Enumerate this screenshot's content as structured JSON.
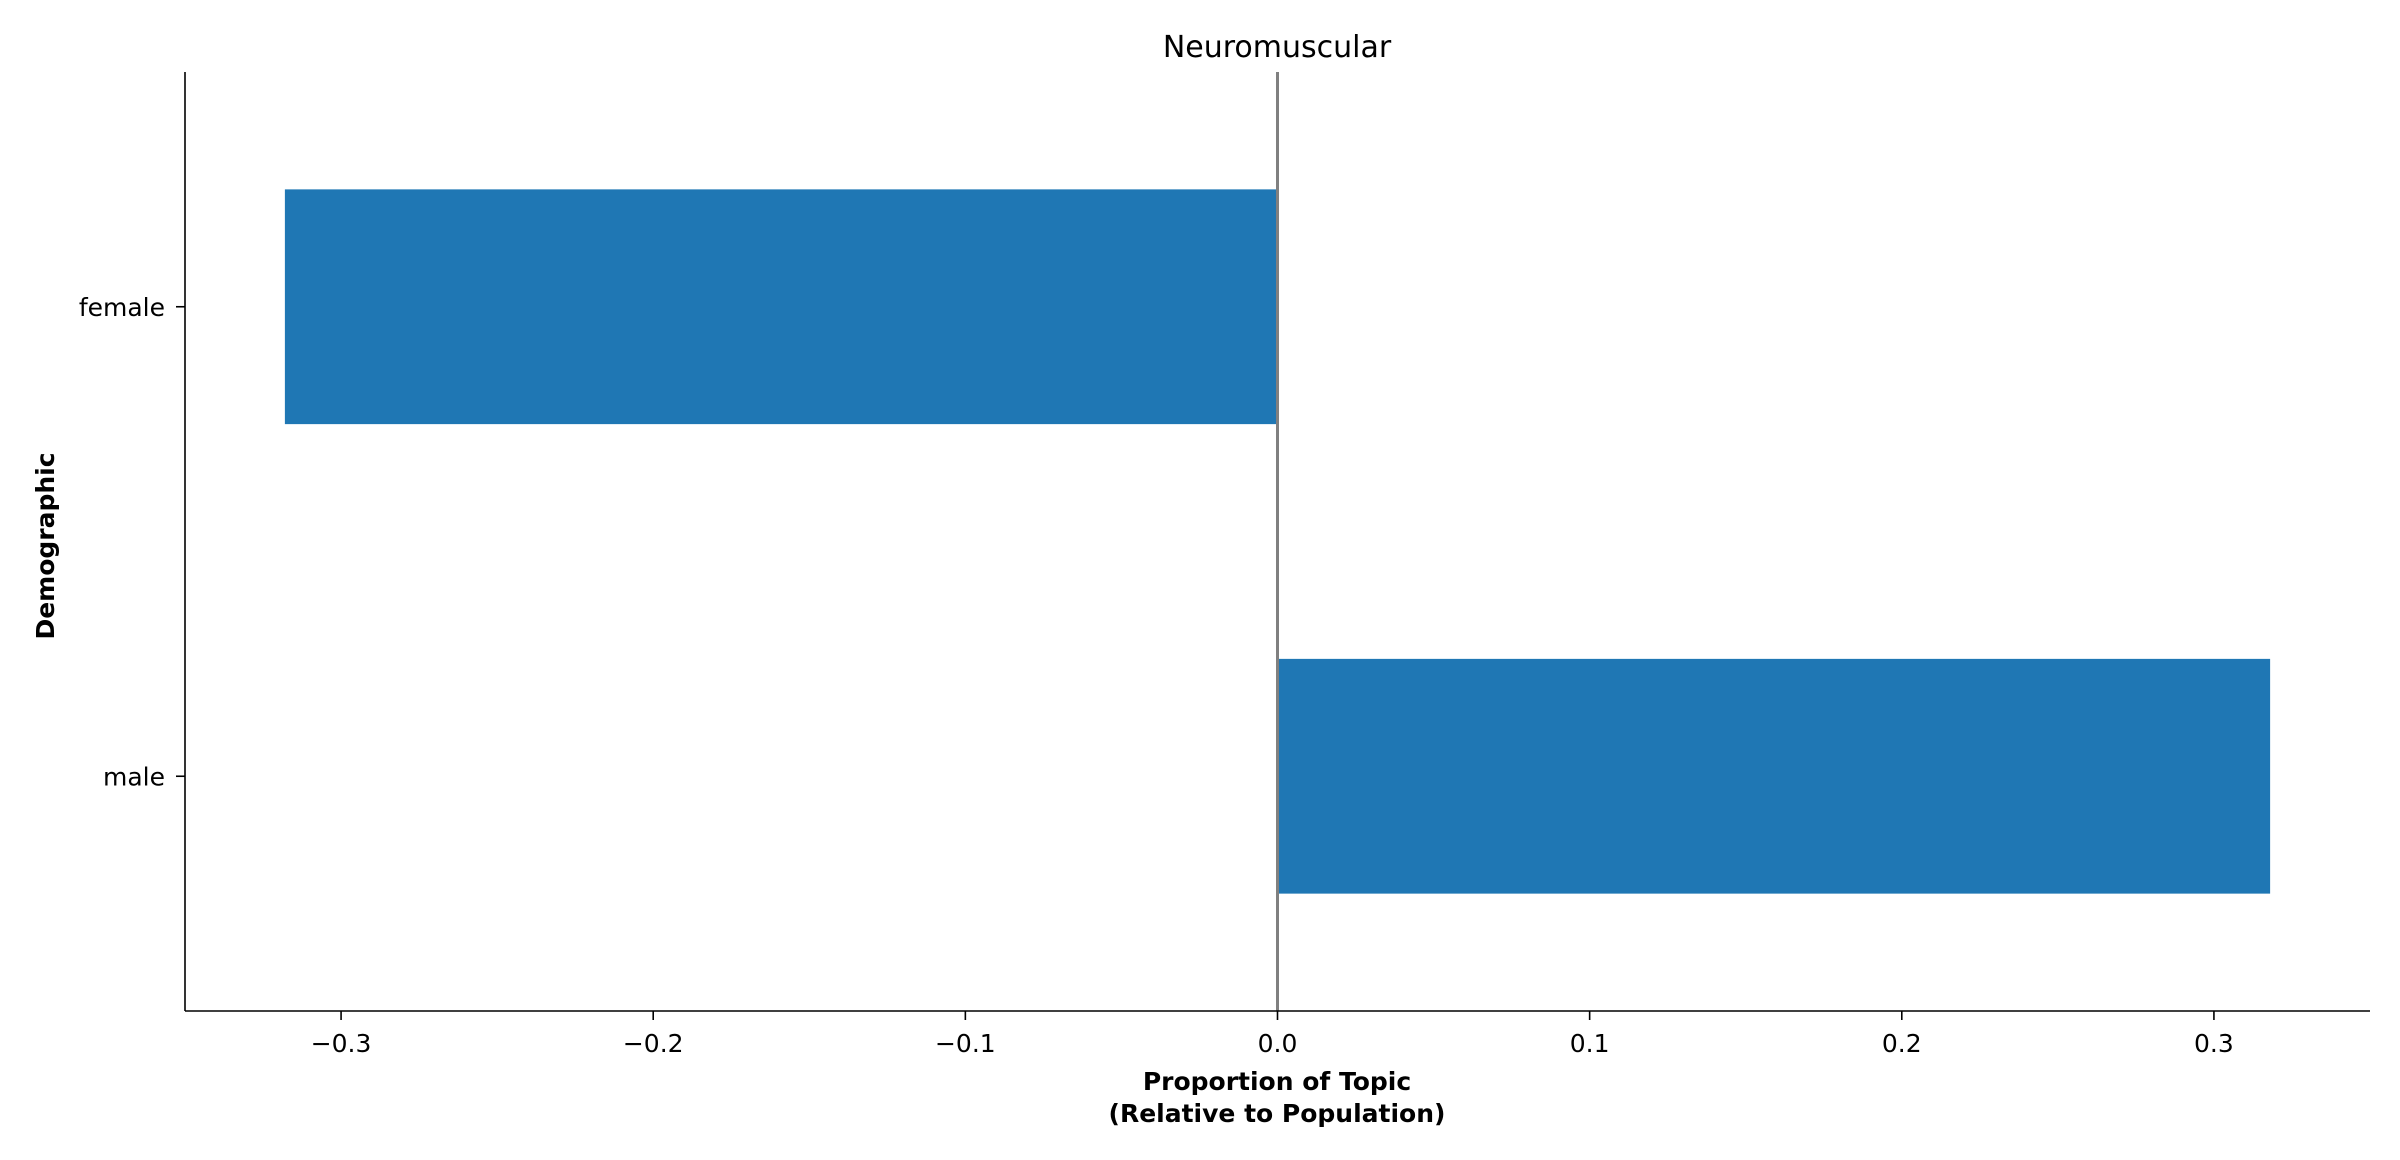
{
  "chart_data": {
    "type": "bar",
    "orientation": "horizontal",
    "title": "Neuromuscular",
    "xlabel_lines": [
      "Proportion of Topic",
      "(Relative to Population)"
    ],
    "ylabel": "Demographic",
    "categories": [
      "female",
      "male"
    ],
    "values": [
      -0.318,
      0.318
    ],
    "xlim": [
      -0.35,
      0.35
    ],
    "xticks": [
      -0.3,
      -0.2,
      -0.1,
      0.0,
      0.1,
      0.2,
      0.3
    ],
    "xtick_labels": [
      "−0.3",
      "−0.2",
      "−0.1",
      "0.0",
      "0.1",
      "0.2",
      "0.3"
    ],
    "reference_line_x": 0.0,
    "grid": false,
    "colors": {
      "bar": "#1f77b4",
      "reference_line": "#808080",
      "axis": "#000000"
    }
  }
}
